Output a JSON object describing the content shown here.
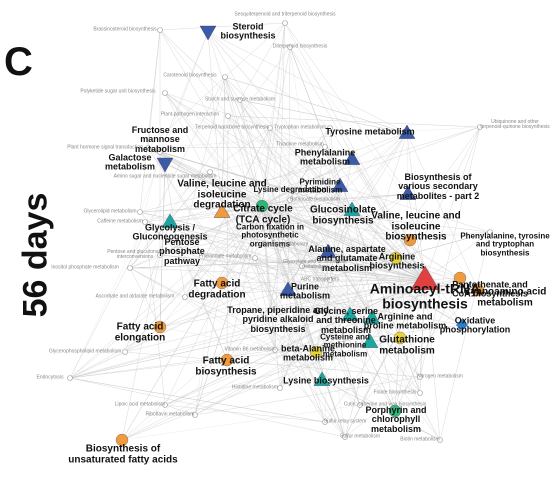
{
  "panel_label": "C",
  "side_label": "56 days",
  "nodes": [
    {
      "label": "Steroid biosynthesis"
    },
    {
      "label": "Fructose and mannose metabolism"
    },
    {
      "label": "Galactose metabolism"
    },
    {
      "label": "Tyrosine metabolism"
    },
    {
      "label": "Phenylalanine metabolism"
    },
    {
      "label": "Valine, leucine and isoleucine degradation"
    },
    {
      "label": "Lysine degradation"
    },
    {
      "label": "Pyrimidine metabolism"
    },
    {
      "label": "Biosynthesis of various secondary metabolites - part 2"
    },
    {
      "label": "Citrate cycle (TCA cycle)"
    },
    {
      "label": "Glucosinolate biosynthesis"
    },
    {
      "label": "Valine, leucine and isoleucine biosynthesis"
    },
    {
      "label": "Phenylalanine, tyrosine and tryptophan biosynthesis"
    },
    {
      "label": "Glycolysis / Gluconeogenesis"
    },
    {
      "label": "Carbon fixation in photosynthetic organisms"
    },
    {
      "label": "Pentose phosphate pathway"
    },
    {
      "label": "Alanine, aspartate and glutamate metabolism"
    },
    {
      "label": "Arginine biosynthesis"
    },
    {
      "label": "Pantothenate and CoA biosynthesis"
    },
    {
      "label": "Aminoacyl-tRNA biosynthesis"
    },
    {
      "label": "Cyanoamino acid metabolism"
    },
    {
      "label": "Fatty acid degradation"
    },
    {
      "label": "Purine metabolism"
    },
    {
      "label": "Tropane, piperidine and pyridine alkaloid biosynthesis"
    },
    {
      "label": "Glycine, serine and threonine metabolism"
    },
    {
      "label": "Arginine and proline metabolism"
    },
    {
      "label": "Oxidative phosphorylation"
    },
    {
      "label": "Fatty acid elongation"
    },
    {
      "label": "Glutathione metabolism"
    },
    {
      "label": "Cysteine and methionine metabolism"
    },
    {
      "label": "Fatty acid biosynthesis"
    },
    {
      "label": "beta-Alanine metabolism"
    },
    {
      "label": "Lysine biosynthesis"
    },
    {
      "label": "Porphyrin and chlorophyll metabolism"
    },
    {
      "label": "Biosynthesis of unsaturated fatty acids"
    },
    {
      "label": "Sesquiterpenoid and triterpenoid biosynthesis"
    },
    {
      "label": "Brassinosteroid biosynthesis"
    },
    {
      "label": "Diterpenoid biosynthesis"
    },
    {
      "label": "Carotenoid biosynthesis"
    },
    {
      "label": "Polyketide sugar unit biosynthesis"
    },
    {
      "label": "Starch and sucrose metabolism"
    },
    {
      "label": "Plant-pathogen interaction"
    },
    {
      "label": "Terpenoid backbone biosynthesis"
    },
    {
      "label": "Tryptophan metabolism"
    },
    {
      "label": "Ubiquinone and other terpenoid-quinone biosynthesis"
    },
    {
      "label": "Plant hormone signal transduction"
    },
    {
      "label": "Thiamine metabolism"
    },
    {
      "label": "Amino sugar and nucleotide sugar metabolism"
    },
    {
      "label": "Butanoate metabolism"
    },
    {
      "label": "Glycerolipid metabolism"
    },
    {
      "label": "Caffeine metabolism"
    },
    {
      "label": "Pentose and glucuronate interconversions"
    },
    {
      "label": "Inositol phosphate metabolism"
    },
    {
      "label": "Propanoate metabolism"
    },
    {
      "label": "Pyruvate metabolism"
    },
    {
      "label": "Glyoxylate and dicarboxylate metabolism"
    },
    {
      "label": "ABC transporters"
    },
    {
      "label": "Ascorbate and aldarate metabolism"
    },
    {
      "label": "Glycerophospholipid metabolism"
    },
    {
      "label": "Endocytosis"
    },
    {
      "label": "Vitamin B6 metabolism"
    },
    {
      "label": "Histidine metabolism"
    },
    {
      "label": "Folate biosynthesis"
    },
    {
      "label": "Lipoic acid metabolism"
    },
    {
      "label": "Riboflavin metabolism"
    },
    {
      "label": "Cutin, suberine and wax biosynthesis"
    },
    {
      "label": "Sulfur metabolism"
    },
    {
      "label": "Biotin metabolism"
    },
    {
      "label": "Sulfur relay system"
    },
    {
      "label": "Nitrogen metabolism"
    }
  ]
}
